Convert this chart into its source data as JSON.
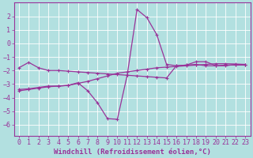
{
  "background_color": "#b2e0e0",
  "grid_color": "#ffffff",
  "line_color": "#993399",
  "marker_style": "+",
  "xlabel": "Windchill (Refroidissement éolien,°C)",
  "xlabel_fontsize": 6.5,
  "tick_fontsize": 6,
  "xlim": [
    -0.5,
    23.5
  ],
  "ylim": [
    -6.8,
    3.0
  ],
  "yticks": [
    2,
    1,
    0,
    -1,
    -2,
    -3,
    -4,
    -5,
    -6
  ],
  "xticks": [
    0,
    1,
    2,
    3,
    4,
    5,
    6,
    7,
    8,
    9,
    10,
    11,
    12,
    13,
    14,
    15,
    16,
    17,
    18,
    19,
    20,
    21,
    22,
    23
  ],
  "line1_x": [
    0,
    1,
    2,
    3,
    4,
    5,
    6,
    7,
    8,
    9,
    10,
    11,
    12,
    13,
    14,
    15,
    16,
    17,
    18,
    19,
    20,
    21,
    22,
    23
  ],
  "line1_y": [
    -1.8,
    -1.4,
    -1.8,
    -2.0,
    -2.0,
    -2.05,
    -2.1,
    -2.15,
    -2.2,
    -2.25,
    -2.3,
    -2.35,
    -2.4,
    -2.45,
    -2.5,
    -2.55,
    -1.65,
    -1.6,
    -1.35,
    -1.35,
    -1.65,
    -1.65,
    -1.55,
    -1.6
  ],
  "line2_x": [
    0,
    1,
    2,
    3,
    4,
    5,
    6,
    7,
    8,
    9,
    10,
    11,
    12,
    13,
    14,
    15,
    16,
    17,
    18,
    19,
    20,
    21,
    22,
    23
  ],
  "line2_y": [
    -3.4,
    -3.35,
    -3.25,
    -3.15,
    -3.15,
    -3.1,
    -2.9,
    -3.5,
    -4.4,
    -5.55,
    -5.6,
    -2.35,
    2.5,
    1.9,
    0.65,
    -1.55,
    -1.65,
    -1.6,
    -1.55,
    -1.65,
    -1.65,
    -1.6,
    -1.6,
    -1.6
  ],
  "line3_x": [
    0,
    1,
    2,
    3,
    4,
    5,
    6,
    7,
    8,
    9,
    10,
    11,
    12,
    13,
    14,
    15,
    16,
    17,
    18,
    19,
    20,
    21,
    22,
    23
  ],
  "line3_y": [
    -3.5,
    -3.4,
    -3.3,
    -3.2,
    -3.15,
    -3.1,
    -2.95,
    -2.8,
    -2.6,
    -2.4,
    -2.2,
    -2.1,
    -2.0,
    -1.9,
    -1.8,
    -1.75,
    -1.7,
    -1.65,
    -1.6,
    -1.55,
    -1.5,
    -1.5,
    -1.52,
    -1.55
  ]
}
